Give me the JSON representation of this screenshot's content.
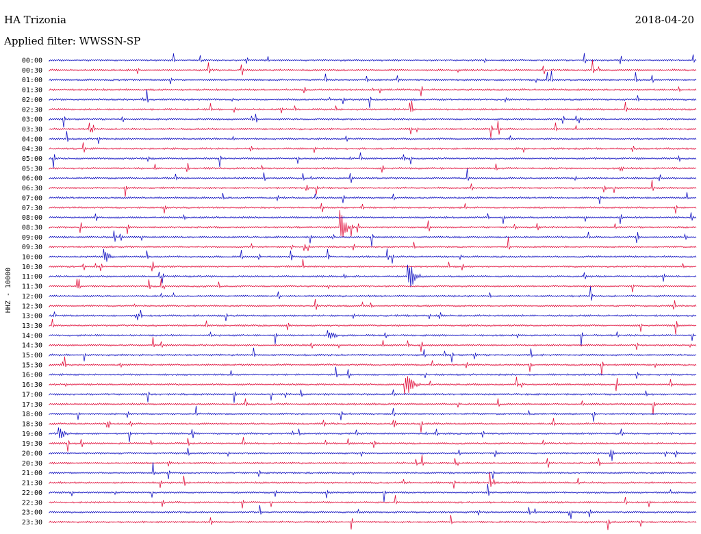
{
  "header": {
    "station": "HA Trizonia",
    "date": "2018-04-20",
    "filter": "Applied filter: WWSSN-SP"
  },
  "chart_data": {
    "type": "line",
    "title": "HA Trizonia",
    "ylabel": "HHZ - 10000",
    "row_labels": [
      "00:00",
      "00:30",
      "01:00",
      "01:30",
      "02:00",
      "02:30",
      "03:00",
      "03:30",
      "04:00",
      "04:30",
      "05:00",
      "05:30",
      "06:00",
      "06:30",
      "07:00",
      "07:30",
      "08:00",
      "08:30",
      "09:00",
      "09:30",
      "10:00",
      "10:30",
      "11:00",
      "11:30",
      "12:00",
      "12:30",
      "13:00",
      "13:30",
      "14:00",
      "14:30",
      "15:00",
      "15:30",
      "16:00",
      "16:30",
      "17:00",
      "17:30",
      "18:00",
      "18:30",
      "19:00",
      "19:30",
      "20:00",
      "20:30",
      "21:00",
      "21:30",
      "22:00",
      "22:30",
      "23:00",
      "23:30"
    ],
    "series_colors": [
      "#1010c0",
      "#e0103c"
    ],
    "notable_events": [
      {
        "row": "08:30",
        "fraction": 0.45,
        "amplitude": "large"
      },
      {
        "row": "11:00",
        "fraction": 0.555,
        "amplitude": "large"
      },
      {
        "row": "16:30",
        "fraction": 0.55,
        "amplitude": "large"
      },
      {
        "row": "10:00",
        "fraction": 0.085,
        "amplitude": "medium"
      },
      {
        "row": "14:00",
        "fraction": 0.43,
        "amplitude": "medium"
      },
      {
        "row": "19:00",
        "fraction": 0.015,
        "amplitude": "medium"
      }
    ]
  }
}
